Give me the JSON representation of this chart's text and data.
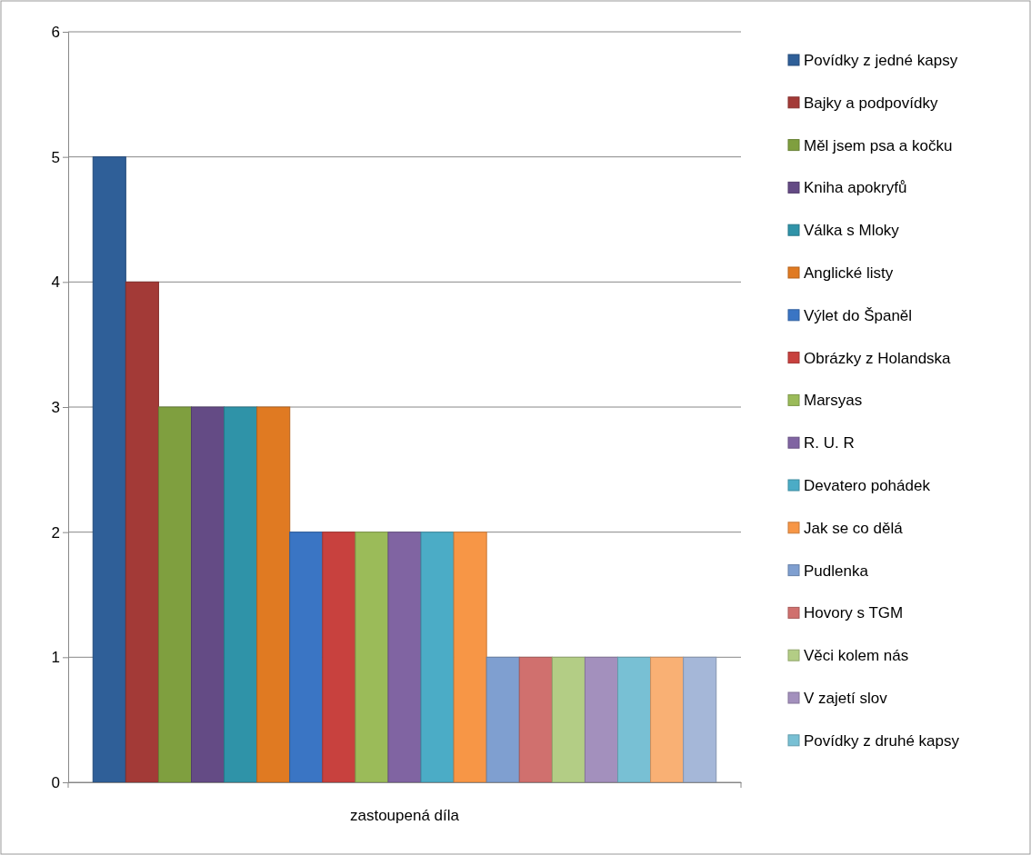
{
  "chart_data": {
    "type": "bar",
    "categories": [
      "zastoupená díla"
    ],
    "ylim": [
      0,
      6
    ],
    "yticks": [
      0,
      1,
      2,
      3,
      4,
      5,
      6
    ],
    "grid": "y",
    "legend": "right",
    "series": [
      {
        "name": "Povídky z jedné kapsy",
        "color": "#2f5f98",
        "values": [
          5
        ]
      },
      {
        "name": "Bajky a podpovídky",
        "color": "#a33a37",
        "values": [
          4
        ]
      },
      {
        "name": "Měl jsem psa a kočku",
        "color": "#7f9f3f",
        "values": [
          3
        ]
      },
      {
        "name": "Kniha apokryfů",
        "color": "#644b85",
        "values": [
          3
        ]
      },
      {
        "name": "Válka s Mloky",
        "color": "#2f93a8",
        "values": [
          3
        ]
      },
      {
        "name": "Anglické listy",
        "color": "#e07a22",
        "values": [
          3
        ]
      },
      {
        "name": "Výlet do Španěl",
        "color": "#3a75c4",
        "values": [
          2
        ]
      },
      {
        "name": "Obrázky z Holandska",
        "color": "#c8413e",
        "values": [
          2
        ]
      },
      {
        "name": "Marsyas",
        "color": "#9bbb59",
        "values": [
          2
        ]
      },
      {
        "name": "R. U. R",
        "color": "#8064a2",
        "values": [
          2
        ]
      },
      {
        "name": "Devatero pohádek",
        "color": "#4bacc6",
        "values": [
          2
        ]
      },
      {
        "name": "Jak se co dělá",
        "color": "#f79646",
        "values": [
          2
        ]
      },
      {
        "name": "Pudlenka",
        "color": "#7f9fd0",
        "values": [
          1
        ]
      },
      {
        "name": "Hovory s TGM",
        "color": "#d0706e",
        "values": [
          1
        ]
      },
      {
        "name": "Věci kolem nás",
        "color": "#b3cd85",
        "values": [
          1
        ]
      },
      {
        "name": "V zajetí slov",
        "color": "#a390bd",
        "values": [
          1
        ]
      },
      {
        "name": "Povídky z druhé kapsy",
        "color": "#78c0d4",
        "values": [
          1
        ]
      },
      {
        "color": "#f9b074",
        "values": [
          1
        ]
      },
      {
        "color": "#a5b7d8",
        "values": [
          1
        ]
      }
    ]
  }
}
